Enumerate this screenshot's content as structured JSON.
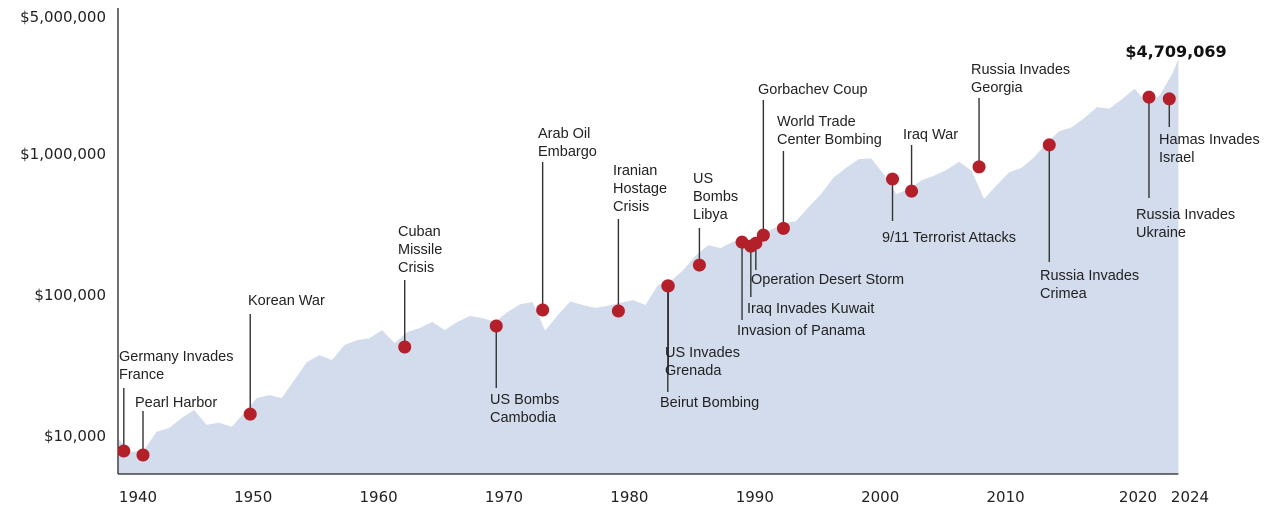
{
  "chart_data": {
    "type": "area",
    "title": "",
    "xlabel": "",
    "ylabel": "",
    "y_scale": "log",
    "ylim": [
      5500,
      10500000
    ],
    "xlim": [
      1940,
      2024.5
    ],
    "grid": false,
    "legend": "none",
    "colors": {
      "area": "#d3dcec",
      "event_dot": "#b3202a",
      "stem": "#333333",
      "axis": "#222222"
    },
    "y_ticks": [
      {
        "value": 10000,
        "label": "$10,000"
      },
      {
        "value": 100000,
        "label": "$100,000"
      },
      {
        "value": 1000000,
        "label": "$1,000,000"
      },
      {
        "value": 5000000,
        "label": "$5,000,000"
      }
    ],
    "x_ticks": [
      {
        "value": 1940,
        "label": "1940"
      },
      {
        "value": 1950,
        "label": "1950"
      },
      {
        "value": 1960,
        "label": "1960"
      },
      {
        "value": 1970,
        "label": "1970"
      },
      {
        "value": 1980,
        "label": "1980"
      },
      {
        "value": 1990,
        "label": "1990"
      },
      {
        "value": 2000,
        "label": "2000"
      },
      {
        "value": 2010,
        "label": "2010"
      },
      {
        "value": 2020,
        "label": "2020"
      },
      {
        "value": 2024,
        "label": "2024"
      }
    ],
    "final_value_label": "$4,709,069",
    "series": [
      {
        "points": [
          [
            1940,
            9400
          ],
          [
            1941,
            7700
          ],
          [
            1942,
            7900
          ],
          [
            1943,
            10700
          ],
          [
            1944,
            11400
          ],
          [
            1945,
            13400
          ],
          [
            1946,
            15300
          ],
          [
            1947,
            12000
          ],
          [
            1948,
            12400
          ],
          [
            1949,
            11600
          ],
          [
            1950,
            14600
          ],
          [
            1951,
            18600
          ],
          [
            1952,
            19500
          ],
          [
            1953,
            18600
          ],
          [
            1954,
            25000
          ],
          [
            1955,
            33500
          ],
          [
            1956,
            37500
          ],
          [
            1957,
            34600
          ],
          [
            1958,
            44200
          ],
          [
            1959,
            47900
          ],
          [
            1960,
            49500
          ],
          [
            1961,
            56400
          ],
          [
            1962,
            45600
          ],
          [
            1963,
            54600
          ],
          [
            1964,
            58300
          ],
          [
            1965,
            64400
          ],
          [
            1966,
            56400
          ],
          [
            1967,
            64400
          ],
          [
            1968,
            71000
          ],
          [
            1969,
            68600
          ],
          [
            1970,
            64400
          ],
          [
            1971,
            75800
          ],
          [
            1972,
            86000
          ],
          [
            1973,
            89000
          ],
          [
            1974,
            56000
          ],
          [
            1975,
            72000
          ],
          [
            1976,
            90000
          ],
          [
            1977,
            85000
          ],
          [
            1978,
            81000
          ],
          [
            1979,
            84000
          ],
          [
            1980,
            88000
          ],
          [
            1981,
            92000
          ],
          [
            1982,
            85000
          ],
          [
            1983,
            118000
          ],
          [
            1984,
            125000
          ],
          [
            1985,
            150000
          ],
          [
            1986,
            190000
          ],
          [
            1987,
            226000
          ],
          [
            1988,
            215000
          ],
          [
            1989,
            240000
          ],
          [
            1990,
            235000
          ],
          [
            1991,
            265000
          ],
          [
            1992,
            290000
          ],
          [
            1993,
            320000
          ],
          [
            1994,
            335000
          ],
          [
            1995,
            420000
          ],
          [
            1996,
            520000
          ],
          [
            1997,
            680000
          ],
          [
            1998,
            800000
          ],
          [
            1999,
            920000
          ],
          [
            2000,
            930000
          ],
          [
            2001,
            720000
          ],
          [
            2002,
            520000
          ],
          [
            2003,
            560000
          ],
          [
            2004,
            650000
          ],
          [
            2005,
            700000
          ],
          [
            2006,
            770000
          ],
          [
            2007,
            880000
          ],
          [
            2008,
            760000
          ],
          [
            2009,
            480000
          ],
          [
            2010,
            600000
          ],
          [
            2011,
            740000
          ],
          [
            2012,
            800000
          ],
          [
            2013,
            950000
          ],
          [
            2014,
            1200000
          ],
          [
            2015,
            1450000
          ],
          [
            2016,
            1550000
          ],
          [
            2017,
            1800000
          ],
          [
            2018,
            2150000
          ],
          [
            2019,
            2100000
          ],
          [
            2020,
            2450000
          ],
          [
            2021,
            2900000
          ],
          [
            2022,
            2300000
          ],
          [
            2023,
            2600000
          ],
          [
            2024,
            3700000
          ],
          [
            2024.5,
            4709069
          ]
        ]
      }
    ],
    "events": [
      {
        "date": 1940.4,
        "value": 7830,
        "label_lines": [
          "Germany Invades",
          "France"
        ],
        "side": "above"
      },
      {
        "date": 1941.93,
        "value": 7330,
        "label_lines": [
          "Pearl Harbor"
        ],
        "side": "above"
      },
      {
        "date": 1950.48,
        "value": 14300,
        "label_lines": [
          "Korean War"
        ],
        "side": "above"
      },
      {
        "date": 1962.8,
        "value": 42800,
        "label_lines": [
          "Cuban",
          "Missile",
          "Crisis"
        ],
        "side": "above"
      },
      {
        "date": 1970.1,
        "value": 60300,
        "label_lines": [
          "US Bombs",
          "Cambodia"
        ],
        "side": "below"
      },
      {
        "date": 1973.8,
        "value": 78300,
        "label_lines": [
          "Arab Oil",
          "Embargo"
        ],
        "side": "above"
      },
      {
        "date": 1979.84,
        "value": 77000,
        "label_lines": [
          "Iranian",
          "Hostage",
          "Crisis"
        ],
        "side": "above"
      },
      {
        "date": 1983.78,
        "value": 116000,
        "label_lines": [
          "Beirut Bombing"
        ],
        "side": "below"
      },
      {
        "date": 1983.82,
        "value": 116000,
        "label_lines": [
          "US Invades",
          "Grenada"
        ],
        "side": "below"
      },
      {
        "date": 1986.3,
        "value": 163000,
        "label_lines": [
          "US",
          "Bombs",
          "Libya"
        ],
        "side": "above"
      },
      {
        "date": 1989.7,
        "value": 237000,
        "label_lines": [
          "Invasion of Panama"
        ],
        "side": "below"
      },
      {
        "date": 1990.4,
        "value": 222000,
        "label_lines": [
          "Iraq Invades Kuwait"
        ],
        "side": "below"
      },
      {
        "date": 1990.8,
        "value": 233000,
        "label_lines": [
          "Operation Desert Storm"
        ],
        "side": "below"
      },
      {
        "date": 1991.4,
        "value": 266000,
        "label_lines": [
          "Gorbachev Coup"
        ],
        "side": "above"
      },
      {
        "date": 1993.0,
        "value": 297000,
        "label_lines": [
          "World Trade",
          "Center Bombing"
        ],
        "side": "above"
      },
      {
        "date": 2001.7,
        "value": 664000,
        "label_lines": [
          "9/11 Terrorist Attacks"
        ],
        "side": "below"
      },
      {
        "date": 2003.22,
        "value": 545000,
        "label_lines": [
          "Iraq War"
        ],
        "side": "above"
      },
      {
        "date": 2008.6,
        "value": 810000,
        "label_lines": [
          "Russia Invades",
          "Georgia"
        ],
        "side": "above"
      },
      {
        "date": 2014.2,
        "value": 1160000,
        "label_lines": [
          "Russia Invades",
          "Crimea"
        ],
        "side": "below"
      },
      {
        "date": 2022.15,
        "value": 2530000,
        "label_lines": [
          "Russia Invades",
          "Ukraine"
        ],
        "side": "below"
      },
      {
        "date": 2023.77,
        "value": 2460000,
        "label_lines": [
          "Hamas Invades",
          "Israel"
        ],
        "side": "below"
      }
    ]
  }
}
